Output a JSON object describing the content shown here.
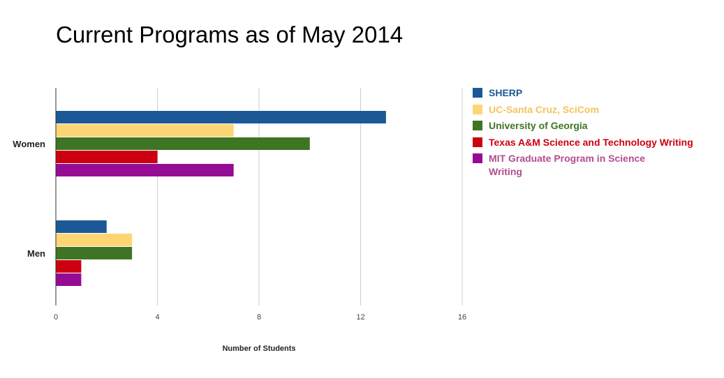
{
  "chart_data": {
    "type": "bar",
    "orientation": "horizontal",
    "title": "Current Programs as of May 2014",
    "xlabel": "Number of Students",
    "ylabel": "",
    "categories": [
      "Women",
      "Men"
    ],
    "xlim": [
      0,
      16
    ],
    "xticks": [
      0,
      4,
      8,
      12,
      16
    ],
    "grid": true,
    "legend_position": "right",
    "series": [
      {
        "name": "SHERP",
        "color": "#1c5896",
        "values": [
          13,
          2
        ]
      },
      {
        "name": "UC-Santa Cruz, SciCom",
        "color": "#fdd574",
        "values": [
          7,
          3
        ]
      },
      {
        "name": "University of Georgia",
        "color": "#3f7424",
        "values": [
          10,
          3
        ]
      },
      {
        "name": "Texas A&M Science and Technology Writing",
        "color": "#cc0011",
        "values": [
          4,
          1
        ]
      },
      {
        "name": "MIT Graduate Program in Science Writing",
        "color": "#950b93",
        "values": [
          7,
          1
        ]
      }
    ],
    "legend": [
      {
        "lines": [
          "SHERP"
        ],
        "text_color": "#1c5896"
      },
      {
        "lines": [
          "UC-Santa Cruz, SciCom"
        ],
        "text_color": "#f5c35c"
      },
      {
        "lines": [
          "University of Georgia"
        ],
        "text_color": "#3f7424"
      },
      {
        "lines": [
          "Texas A&M Science and Technology Writing"
        ],
        "text_color": "#cc0011"
      },
      {
        "lines": [
          "MIT Graduate Program in Science",
          "Writing"
        ],
        "text_color": "#b24e8d"
      }
    ]
  }
}
